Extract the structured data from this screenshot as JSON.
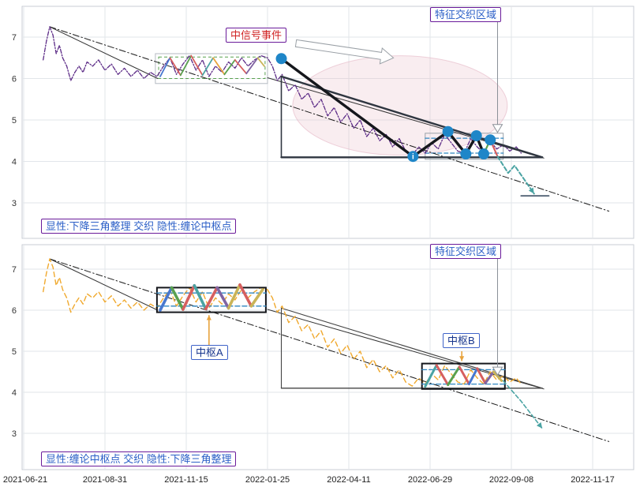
{
  "annotations": {
    "signal_event": "中信号事件",
    "interweave_region": "特征交织区域",
    "pivot_a": "中枢A",
    "pivot_b": "中枢B"
  },
  "axes": {
    "x_tick_labels": [
      "2021-06-21",
      "2021-08-31",
      "2021-11-15",
      "2022-01-25",
      "2022-04-11",
      "2022-06-29",
      "2022-09-08",
      "2022-11-17"
    ],
    "y_tick_labels": [
      3,
      4,
      5,
      6,
      7
    ]
  },
  "chart_data": {
    "type": "line",
    "x_unit": "tick index: 0 = 2021-06-21, 1 interval = one x-axis tick",
    "xlim": [
      0,
      7.45
    ],
    "ylim": [
      2.75,
      7.6
    ],
    "yticks": [
      3,
      4,
      5,
      6,
      7
    ],
    "x_tick_labels": [
      "2021-06-21",
      "2021-08-31",
      "2021-11-15",
      "2022-01-25",
      "2022-04-11",
      "2022-06-29",
      "2022-09-08",
      "2022-11-17"
    ],
    "grid": true,
    "shared_price_points": [
      [
        0.24,
        6.45
      ],
      [
        0.28,
        6.9
      ],
      [
        0.32,
        7.25
      ],
      [
        0.36,
        7.05
      ],
      [
        0.4,
        6.6
      ],
      [
        0.44,
        6.8
      ],
      [
        0.48,
        6.5
      ],
      [
        0.53,
        6.3
      ],
      [
        0.58,
        5.95
      ],
      [
        0.63,
        6.15
      ],
      [
        0.68,
        6.3
      ],
      [
        0.73,
        6.15
      ],
      [
        0.78,
        6.4
      ],
      [
        0.85,
        6.3
      ],
      [
        0.92,
        6.45
      ],
      [
        1.0,
        6.2
      ],
      [
        1.08,
        6.35
      ],
      [
        1.16,
        6.1
      ],
      [
        1.24,
        6.25
      ],
      [
        1.32,
        6.05
      ],
      [
        1.4,
        6.2
      ],
      [
        1.48,
        6.0
      ],
      [
        1.56,
        6.15
      ],
      [
        1.64,
        6.05
      ],
      [
        1.72,
        6.3
      ],
      [
        1.8,
        6.5
      ],
      [
        1.88,
        6.1
      ],
      [
        1.96,
        6.35
      ],
      [
        2.04,
        6.55
      ],
      [
        2.12,
        6.2
      ],
      [
        2.2,
        6.45
      ],
      [
        2.28,
        6.05
      ],
      [
        2.36,
        6.3
      ],
      [
        2.44,
        6.15
      ],
      [
        2.52,
        6.4
      ],
      [
        2.6,
        6.25
      ],
      [
        2.68,
        6.5
      ],
      [
        2.76,
        6.3
      ],
      [
        2.84,
        6.45
      ],
      [
        2.92,
        6.55
      ],
      [
        3.0,
        6.5
      ],
      [
        3.06,
        6.3
      ],
      [
        3.12,
        5.95
      ],
      [
        3.18,
        6.1
      ],
      [
        3.26,
        5.7
      ],
      [
        3.34,
        5.85
      ],
      [
        3.42,
        5.5
      ],
      [
        3.5,
        5.65
      ],
      [
        3.58,
        5.3
      ],
      [
        3.66,
        5.5
      ],
      [
        3.74,
        5.1
      ],
      [
        3.82,
        5.3
      ],
      [
        3.9,
        4.95
      ],
      [
        3.98,
        5.15
      ],
      [
        4.06,
        4.8
      ],
      [
        4.14,
        5.0
      ],
      [
        4.22,
        4.6
      ],
      [
        4.3,
        4.8
      ],
      [
        4.38,
        4.5
      ],
      [
        4.46,
        4.65
      ],
      [
        4.54,
        4.35
      ],
      [
        4.62,
        4.55
      ],
      [
        4.7,
        4.25
      ],
      [
        4.78,
        4.15
      ],
      [
        4.86,
        4.35
      ],
      [
        4.94,
        4.2
      ],
      [
        5.02,
        4.45
      ],
      [
        5.1,
        4.3
      ],
      [
        5.18,
        4.65
      ],
      [
        5.26,
        4.45
      ],
      [
        5.34,
        4.25
      ],
      [
        5.42,
        4.2
      ],
      [
        5.5,
        4.55
      ],
      [
        5.58,
        4.35
      ],
      [
        5.66,
        4.2
      ],
      [
        5.74,
        4.5
      ],
      [
        5.82,
        4.3
      ],
      [
        5.9,
        4.4
      ],
      [
        5.98,
        4.25
      ],
      [
        6.06,
        4.35
      ],
      [
        6.12,
        4.2
      ]
    ],
    "panels": [
      {
        "id": "top",
        "caption": "显性:下降三角整理 交织 隐性:缠论中枢点",
        "price_color": "#5b2a86",
        "elements": [
          {
            "type": "ellipse",
            "cx": 4.63,
            "cy": 5.35,
            "rx": 1.32,
            "ry": 1.2,
            "fill": "#e7b6c4",
            "opacity": 0.25,
            "stroke": "#e0a8ba",
            "w": 1
          },
          {
            "type": "rect",
            "x0": 1.62,
            "y0": 5.88,
            "x1": 3.0,
            "y1": 6.6,
            "stroke": "#b4bac1",
            "w": 1
          },
          {
            "type": "rect",
            "x0": 1.66,
            "y0": 6.0,
            "x1": 2.97,
            "y1": 6.52,
            "stroke": "#59a14f",
            "w": 1,
            "dash": "4 3"
          },
          {
            "type": "rect",
            "x0": 4.94,
            "y0": 4.05,
            "x1": 5.9,
            "y1": 4.68,
            "stroke": "#9aa1a8",
            "w": 1
          },
          {
            "type": "line",
            "pts": [
              [
                4.94,
                4.2
              ],
              [
                5.9,
                4.2
              ]
            ],
            "color": "#2e86c1",
            "w": 1.2,
            "dash": "5 3"
          },
          {
            "type": "line",
            "pts": [
              [
                4.94,
                4.56
              ],
              [
                5.9,
                4.56
              ]
            ],
            "color": "#2e86c1",
            "w": 1.2,
            "dash": "5 3"
          },
          {
            "type": "line",
            "pts": [
              [
                0.32,
                7.25
              ],
              [
                7.2,
                2.8
              ]
            ],
            "color": "#1a1a1a",
            "w": 1,
            "dash": "8 3 1.5 3"
          },
          {
            "type": "line",
            "pts": [
              [
                0.32,
                7.25
              ],
              [
                1.65,
                6.0
              ]
            ],
            "color": "#333333",
            "w": 1
          },
          {
            "type": "line",
            "pts": [
              [
                3.0,
                6.02
              ],
              [
                6.4,
                4.08
              ]
            ],
            "color": "#333333",
            "w": 1
          },
          {
            "type": "price",
            "color": "#5b2a86",
            "w": 1.3,
            "dash": "5 2 1.5 2"
          },
          {
            "type": "multiline",
            "w": 1.8,
            "pts": [
              [
                1.68,
                6.05
              ],
              [
                1.8,
                6.5
              ],
              [
                1.93,
                6.08
              ],
              [
                2.06,
                6.55
              ],
              [
                2.2,
                6.08
              ],
              [
                2.33,
                6.5
              ],
              [
                2.47,
                6.1
              ],
              [
                2.6,
                6.45
              ],
              [
                2.74,
                6.12
              ],
              [
                2.88,
                6.5
              ],
              [
                2.96,
                6.3
              ]
            ],
            "colors": [
              "#4878cf",
              "#d65f5f",
              "#59a14f",
              "#d65f5f",
              "#4aa3a3",
              "#e8a33d",
              "#59a14f",
              "#d65f5f",
              "#8064a2",
              "#c9b458"
            ]
          },
          {
            "type": "line",
            "pts": [
              [
                3.17,
                6.05
              ],
              [
                3.17,
                4.1
              ]
            ],
            "color": "#2f3640",
            "w": 1.6
          },
          {
            "type": "line",
            "pts": [
              [
                3.17,
                4.1
              ],
              [
                6.38,
                4.1
              ]
            ],
            "color": "#2f3640",
            "w": 2.4
          },
          {
            "type": "line",
            "pts": [
              [
                3.17,
                6.05
              ],
              [
                6.38,
                4.1
              ]
            ],
            "color": "#2f3640",
            "w": 2.4
          },
          {
            "type": "line",
            "pts": [
              [
                3.17,
                6.48
              ],
              [
                4.79,
                4.12
              ],
              [
                5.22,
                4.72
              ],
              [
                5.44,
                4.18
              ],
              [
                5.57,
                4.62
              ],
              [
                5.66,
                4.18
              ]
            ],
            "color": "#15171c",
            "w": 3.4
          },
          {
            "type": "multiline",
            "w": 2.2,
            "pts": [
              [
                5.66,
                4.18
              ],
              [
                5.74,
                4.52
              ],
              [
                5.83,
                4.12
              ]
            ],
            "colors": [
              "#59a14f",
              "#d65f5f"
            ]
          },
          {
            "type": "line",
            "pts": [
              [
                5.83,
                4.12
              ],
              [
                5.96,
                3.72
              ],
              [
                6.04,
                3.9
              ],
              [
                6.28,
                3.22
              ]
            ],
            "color": "#4aa3a3",
            "w": 2,
            "dash": "5 3",
            "arrow_end": true
          },
          {
            "type": "line",
            "pts": [
              [
                6.12,
                3.17
              ],
              [
                6.46,
                3.17
              ]
            ],
            "color": "#5d6d7e",
            "w": 2
          },
          {
            "type": "fatarrow",
            "from": [
              3.35,
              6.85
            ],
            "to": [
              4.55,
              6.5
            ]
          },
          {
            "type": "vline_arrow",
            "x": 5.83,
            "p0": 7.38,
            "p1": 4.7
          },
          {
            "type": "markers",
            "r": 7,
            "color": "#1f86c8",
            "pts": [
              [
                3.17,
                6.48
              ],
              [
                4.79,
                4.12
              ],
              [
                5.22,
                4.72
              ],
              [
                5.44,
                4.18
              ],
              [
                5.57,
                4.62
              ],
              [
                5.66,
                4.18
              ],
              [
                5.74,
                4.52
              ]
            ],
            "glyph": {
              "index": 1,
              "char": "i"
            }
          }
        ]
      },
      {
        "id": "bottom",
        "caption": "显性:缠论中枢点 交织 隐性:下降三角整理",
        "price_color": "#f0a92e",
        "elements": [
          {
            "type": "line",
            "pts": [
              [
                0.32,
                7.25
              ],
              [
                7.2,
                2.8
              ]
            ],
            "color": "#1a1a1a",
            "w": 1,
            "dash": "8 3 1.5 3"
          },
          {
            "type": "line",
            "pts": [
              [
                0.32,
                7.25
              ],
              [
                1.65,
                6.0
              ]
            ],
            "color": "#333333",
            "w": 1
          },
          {
            "type": "line",
            "pts": [
              [
                3.0,
                6.02
              ],
              [
                6.4,
                4.08
              ]
            ],
            "color": "#333333",
            "w": 1
          },
          {
            "type": "line",
            "pts": [
              [
                3.17,
                6.05
              ],
              [
                3.17,
                4.1
              ]
            ],
            "color": "#444444",
            "w": 1.1
          },
          {
            "type": "line",
            "pts": [
              [
                3.17,
                4.1
              ],
              [
                6.38,
                4.1
              ]
            ],
            "color": "#444444",
            "w": 1.4
          },
          {
            "type": "line",
            "pts": [
              [
                3.17,
                6.05
              ],
              [
                6.38,
                4.1
              ]
            ],
            "color": "#444444",
            "w": 1.1
          },
          {
            "type": "price",
            "color": "#f0a92e",
            "w": 1.4,
            "dash": "6 4"
          },
          {
            "type": "rect",
            "x0": 1.64,
            "y0": 5.95,
            "x1": 2.98,
            "y1": 6.55,
            "stroke": "#15171c",
            "w": 2
          },
          {
            "type": "line",
            "pts": [
              [
                1.64,
                6.1
              ],
              [
                2.98,
                6.1
              ]
            ],
            "color": "#2e86c1",
            "w": 1.4,
            "dash": "6 3"
          },
          {
            "type": "line",
            "pts": [
              [
                1.64,
                6.42
              ],
              [
                2.98,
                6.42
              ]
            ],
            "color": "#2e86c1",
            "w": 1.4,
            "dash": "6 3"
          },
          {
            "type": "multiline",
            "w": 3.6,
            "pts": [
              [
                1.68,
                6.0
              ],
              [
                1.82,
                6.55
              ],
              [
                1.96,
                6.02
              ],
              [
                2.1,
                6.6
              ],
              [
                2.24,
                6.03
              ],
              [
                2.38,
                6.55
              ],
              [
                2.52,
                6.05
              ],
              [
                2.66,
                6.62
              ],
              [
                2.8,
                6.1
              ],
              [
                2.94,
                6.5
              ]
            ],
            "colors": [
              "#4878cf",
              "#59a14f",
              "#d65f5f",
              "#4aa3a3",
              "#d65f5f",
              "#8064a2",
              "#c9b458",
              "#d65f5f",
              "#c9b458"
            ]
          },
          {
            "type": "rect",
            "x0": 4.9,
            "y0": 4.08,
            "x1": 5.92,
            "y1": 4.7,
            "stroke": "#15171c",
            "w": 2
          },
          {
            "type": "line",
            "pts": [
              [
                4.9,
                4.2
              ],
              [
                5.92,
                4.2
              ]
            ],
            "color": "#2e86c1",
            "w": 1.3,
            "dash": "6 3"
          },
          {
            "type": "line",
            "pts": [
              [
                4.9,
                4.55
              ],
              [
                5.92,
                4.55
              ]
            ],
            "color": "#2e86c1",
            "w": 1.3,
            "dash": "6 3"
          },
          {
            "type": "multiline",
            "w": 3.0,
            "pts": [
              [
                4.94,
                4.14
              ],
              [
                5.08,
                4.66
              ],
              [
                5.22,
                4.18
              ],
              [
                5.36,
                4.62
              ],
              [
                5.48,
                4.2
              ],
              [
                5.58,
                4.58
              ],
              [
                5.68,
                4.22
              ],
              [
                5.78,
                4.5
              ],
              [
                5.88,
                4.28
              ]
            ],
            "colors": [
              "#4aa3a3",
              "#d65f5f",
              "#59a14f",
              "#d65f5f",
              "#4878cf",
              "#d65f5f",
              "#8064a2",
              "#c9b458"
            ]
          },
          {
            "type": "line",
            "pts": [
              [
                5.9,
                4.28
              ],
              [
                6.12,
                3.78
              ],
              [
                6.38,
                3.12
              ]
            ],
            "color": "#4aa3a3",
            "w": 1.6,
            "dash": "5 3",
            "arrow_end": true
          },
          {
            "type": "vline_arrow",
            "x": 5.83,
            "p0": 7.3,
            "p1": 4.42
          },
          {
            "type": "arrow",
            "from": [
              2.28,
              5.12
            ],
            "to": [
              2.28,
              5.88
            ],
            "color": "#e8a33d",
            "w": 1.6
          },
          {
            "type": "arrow",
            "from": [
              5.39,
              5.0
            ],
            "to": [
              5.39,
              4.76
            ],
            "color": "#e8a33d",
            "w": 1.6
          }
        ]
      }
    ]
  }
}
